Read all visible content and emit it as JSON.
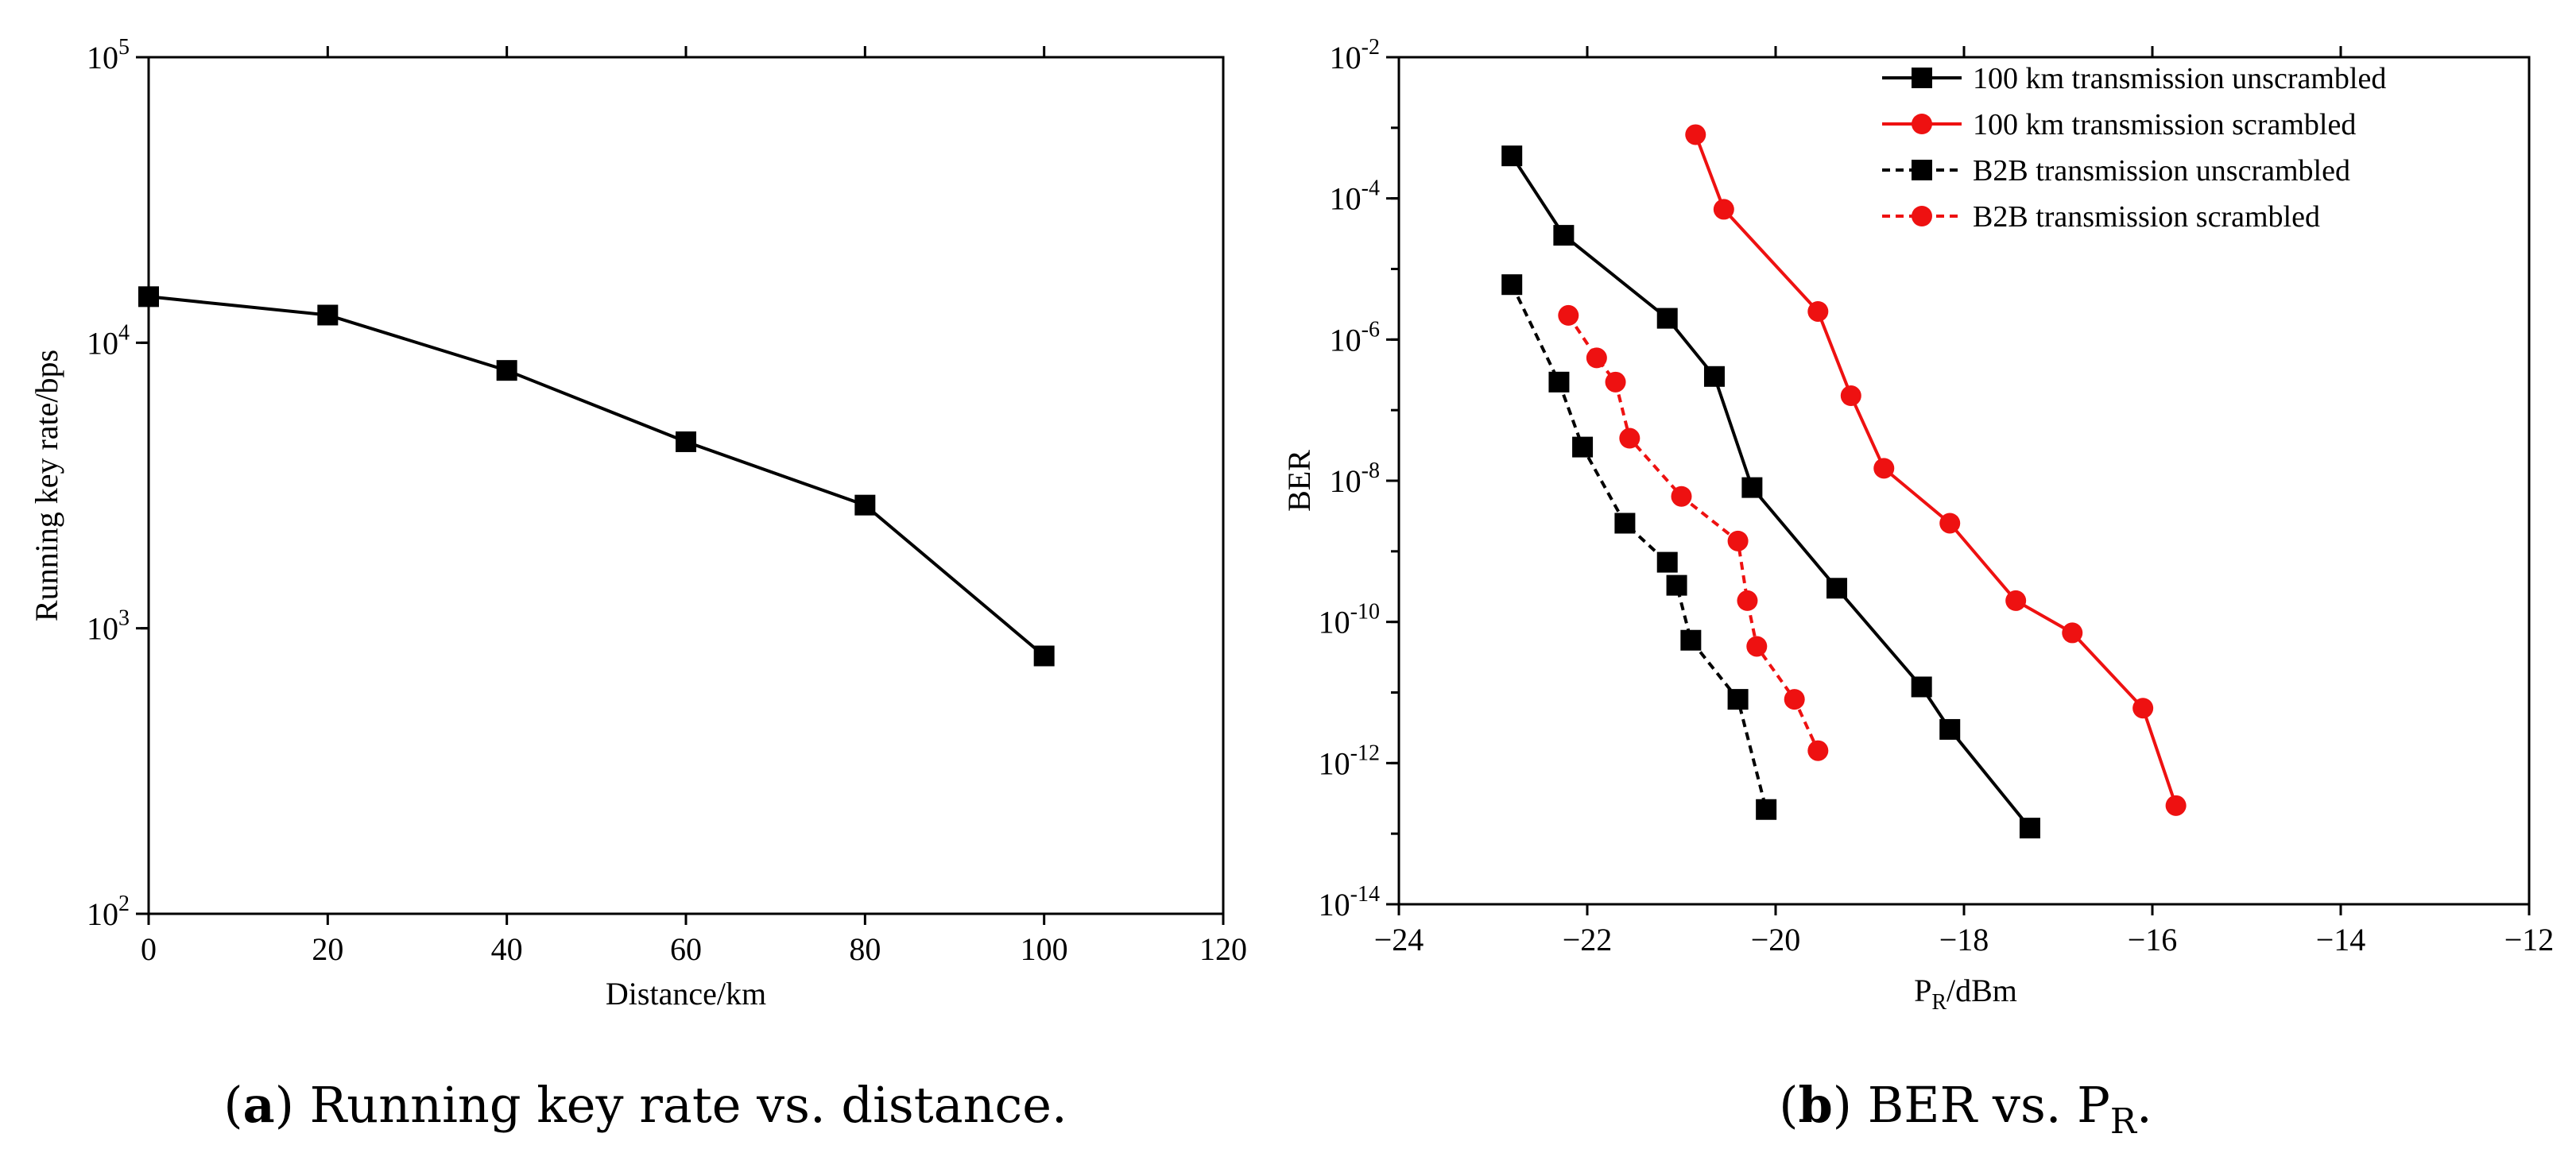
{
  "chart_data": [
    {
      "type": "line",
      "panel_label": "a",
      "caption": "Running key rate vs. distance.",
      "xlabel": "Distance/km",
      "ylabel": "Running key rate/bps",
      "yscale": "log",
      "xlim": [
        0,
        120
      ],
      "ylim_exp": [
        2,
        5
      ],
      "x_ticks": [
        0,
        20,
        40,
        60,
        80,
        100,
        120
      ],
      "y_tick_base": "10",
      "y_tick_exps": [
        "2",
        "3",
        "4",
        "5"
      ],
      "series": [
        {
          "name": "Running key rate",
          "color": "#000000",
          "marker": "square",
          "dash": "solid",
          "x": [
            0,
            20,
            40,
            60,
            80,
            100
          ],
          "y": [
            14500,
            12500,
            8000,
            4500,
            2700,
            800
          ]
        }
      ]
    },
    {
      "type": "line",
      "panel_label": "b",
      "caption_prefix": "BER vs. P",
      "caption_sub": "R",
      "caption_suffix": ".",
      "xlabel_main": "P",
      "xlabel_sub": "R",
      "xlabel_suffix": "/dBm",
      "ylabel": "BER",
      "yscale": "log",
      "xlim": [
        -24,
        -12
      ],
      "ylim_exp": [
        -14,
        -2
      ],
      "x_ticks": [
        "−24",
        "−22",
        "−20",
        "−18",
        "−16",
        "−14",
        "−12"
      ],
      "y_tick_base": "10",
      "y_tick_exps": [
        "-14",
        "-12",
        "-10",
        "-8",
        "-6",
        "-4",
        "-2"
      ],
      "series": [
        {
          "name": "100 km transmission unscrambled",
          "color": "#000000",
          "marker": "square",
          "dash": "solid",
          "x": [
            -22.8,
            -22.25,
            -21.15,
            -20.65,
            -20.25,
            -19.35,
            -18.45,
            -18.15,
            -17.3
          ],
          "y": [
            0.0004,
            3e-05,
            2e-06,
            3e-07,
            8e-09,
            3e-10,
            1.2e-11,
            3e-12,
            1.2e-13
          ]
        },
        {
          "name": "100 km transmission scrambled",
          "color": "#ee1111",
          "marker": "circle",
          "dash": "solid",
          "x": [
            -20.85,
            -20.55,
            -19.55,
            -19.2,
            -18.85,
            -18.15,
            -17.45,
            -16.85,
            -16.1,
            -15.75
          ],
          "y": [
            0.0008,
            7e-05,
            2.5e-06,
            1.6e-07,
            1.5e-08,
            2.5e-09,
            2e-10,
            7e-11,
            6e-12,
            2.5e-13
          ]
        },
        {
          "name": "B2B transmission unscrambled",
          "color": "#000000",
          "marker": "square",
          "dash": "dashed",
          "x": [
            -22.8,
            -22.3,
            -22.05,
            -21.6,
            -21.15,
            -21.05,
            -20.9,
            -20.4,
            -20.1
          ],
          "y": [
            6e-06,
            2.5e-07,
            3e-08,
            2.5e-09,
            7e-10,
            3.3e-10,
            5.5e-11,
            8e-12,
            2.2e-13
          ]
        },
        {
          "name": "B2B transmission scrambled",
          "color": "#ee1111",
          "marker": "circle",
          "dash": "dashed",
          "x": [
            -22.2,
            -21.9,
            -21.7,
            -21.55,
            -21.0,
            -20.4,
            -20.3,
            -20.2,
            -19.8,
            -19.55
          ],
          "y": [
            2.2e-06,
            5.5e-07,
            2.5e-07,
            4e-08,
            6e-09,
            1.4e-09,
            2e-10,
            4.5e-11,
            8e-12,
            1.5e-12
          ]
        }
      ]
    }
  ]
}
